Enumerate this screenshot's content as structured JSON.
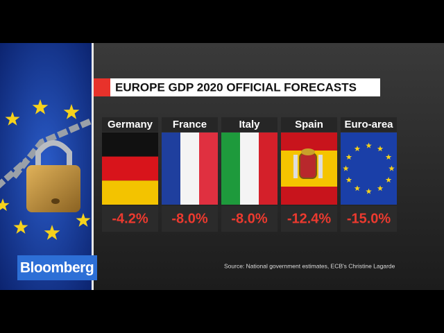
{
  "title": "EUROPE GDP 2020 OFFICIAL FORECASTS",
  "panels": [
    {
      "name": "Germany",
      "value": "-4.2%"
    },
    {
      "name": "France",
      "value": "-8.0%"
    },
    {
      "name": "Italy",
      "value": "-8.0%"
    },
    {
      "name": "Spain",
      "value": "-12.4%"
    },
    {
      "name": "Euro-area",
      "value": "-15.0%"
    }
  ],
  "logo": "Bloomberg",
  "source": "Source: National government estimates, ECB's Christine Lagarde"
}
